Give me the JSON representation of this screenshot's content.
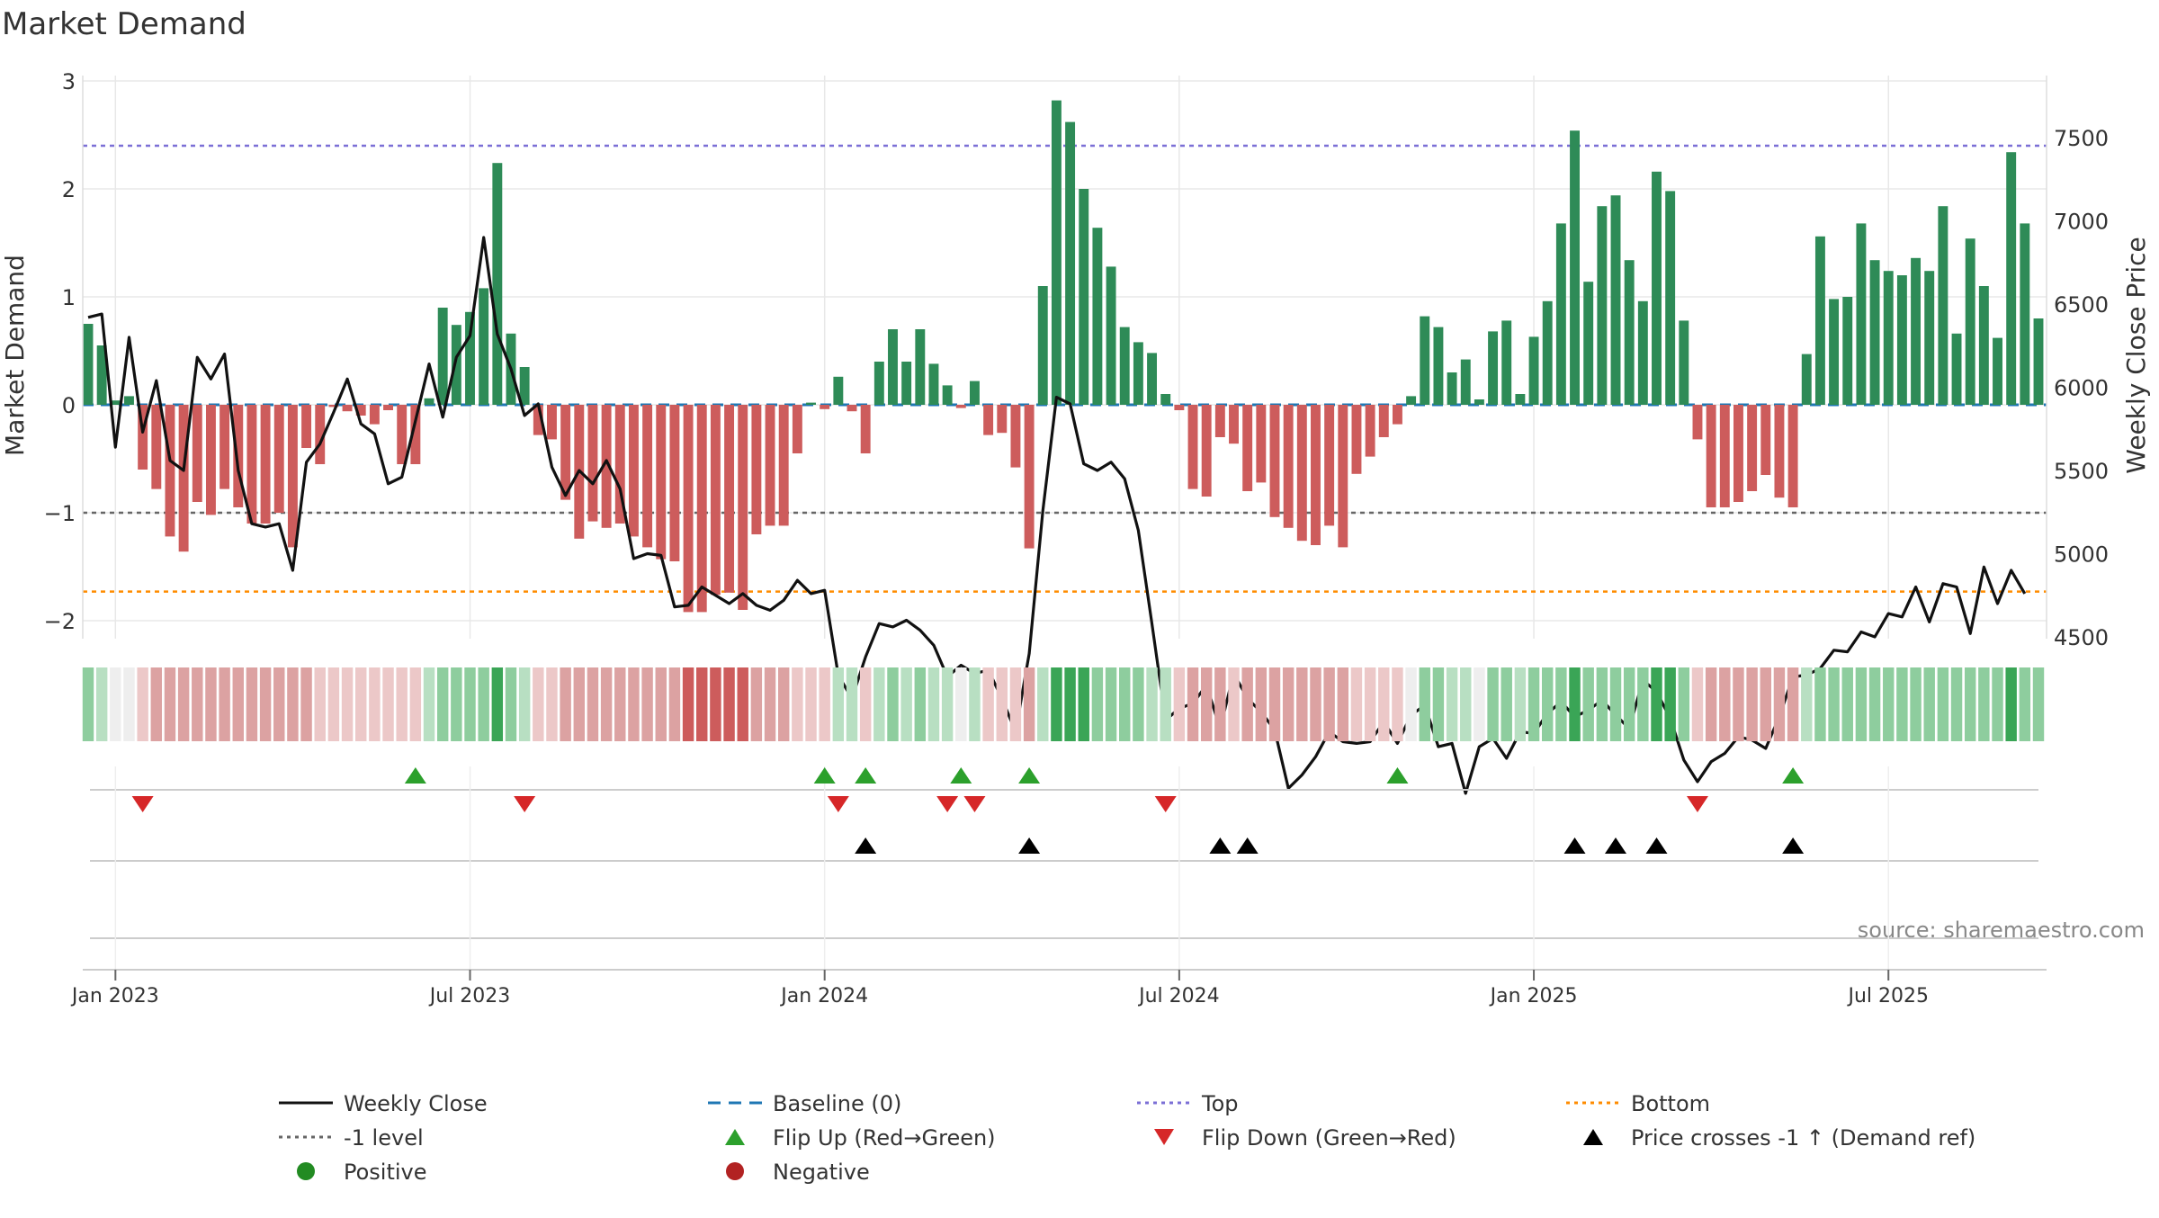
{
  "colors": {
    "positive": "#2e8b57",
    "negative": "#cd5c5c",
    "close": "#111111",
    "baseline": "#1f77b4",
    "top": "#7b6fd6",
    "bottom": "#ff8c00",
    "minus1": "#666666",
    "flip_up": "#2ca02c",
    "flip_down": "#d62728",
    "cross": "#000000",
    "grid": "#e8e8e8",
    "source": "#888888"
  },
  "chart_data": {
    "type": "bar+line",
    "title": "Market Demand",
    "ylabel_left": "Market Demand",
    "ylabel_right": "Weekly Close Price",
    "source": "source: sharemaestro.com",
    "ylim_left": [
      -2.2,
      3.0
    ],
    "ylim_right": [
      4450,
      7800
    ],
    "yticks_left": [
      3,
      2,
      1,
      0,
      -1,
      -2
    ],
    "ytick_labels_left": [
      "3",
      "2",
      "1",
      "0",
      "−1",
      "−2"
    ],
    "yticks_right": [
      7500,
      7000,
      6500,
      6000,
      5500,
      5000,
      4500
    ],
    "ytick_labels_right": [
      "7500",
      "7000",
      "6500",
      "6000",
      "5500",
      "5000",
      "4500"
    ],
    "xtick_weeks": [
      2,
      28,
      54,
      80,
      106,
      132
    ],
    "xtick_labels": [
      "Jan 2023",
      "Jul 2023",
      "Jan 2024",
      "Jul 2024",
      "Jan 2025",
      "Jul 2025"
    ],
    "reference_lines": {
      "top": 2.4,
      "minus1": -1.0,
      "bottom": -1.73,
      "baseline": 0
    },
    "demand": [
      0.75,
      0.55,
      0.04,
      0.08,
      -0.6,
      -0.78,
      -1.22,
      -1.36,
      -0.9,
      -1.02,
      -0.78,
      -0.95,
      -1.1,
      -1.1,
      -1.0,
      -1.32,
      -0.4,
      -0.55,
      -0.02,
      -0.06,
      -0.1,
      -0.18,
      -0.05,
      -0.55,
      -0.55,
      0.06,
      0.9,
      0.74,
      0.86,
      1.08,
      2.24,
      0.66,
      0.35,
      -0.28,
      -0.32,
      -0.88,
      -1.24,
      -1.08,
      -1.14,
      -1.1,
      -1.22,
      -1.32,
      -1.43,
      -1.45,
      -1.92,
      -1.92,
      -1.76,
      -1.74,
      -1.9,
      -1.2,
      -1.12,
      -1.12,
      -0.45,
      0.02,
      -0.04,
      0.26,
      -0.06,
      -0.45,
      0.4,
      0.7,
      0.4,
      0.7,
      0.38,
      0.18,
      -0.03,
      0.22,
      -0.28,
      -0.26,
      -0.58,
      -1.33,
      1.1,
      2.82,
      2.62,
      2.0,
      1.64,
      1.28,
      0.72,
      0.58,
      0.48,
      0.1,
      -0.05,
      -0.78,
      -0.85,
      -0.3,
      -0.36,
      -0.8,
      -0.72,
      -1.04,
      -1.14,
      -1.26,
      -1.3,
      -1.12,
      -1.32,
      -0.64,
      -0.48,
      -0.3,
      -0.18,
      0.08,
      0.82,
      0.72,
      0.3,
      0.42,
      0.05,
      0.68,
      0.78,
      0.1,
      0.63,
      0.96,
      1.68,
      2.54,
      1.14,
      1.84,
      1.94,
      1.34,
      0.96,
      2.16,
      1.98,
      0.78,
      -0.32,
      -0.95,
      -0.95,
      -0.9,
      -0.8,
      -0.65,
      -0.86,
      -0.95,
      0.47,
      1.56,
      0.98,
      1.0,
      1.68,
      1.34,
      1.24,
      1.2,
      1.36,
      1.24,
      1.84,
      0.66,
      1.54,
      1.1,
      0.62,
      2.34,
      1.68,
      0.8
    ],
    "close": [
      6420,
      6440,
      5640,
      6300,
      5730,
      6040,
      5560,
      5500,
      6180,
      6050,
      6200,
      5500,
      5180,
      5160,
      5180,
      4900,
      5550,
      5660,
      5850,
      6050,
      5780,
      5720,
      5420,
      5460,
      5800,
      6140,
      5820,
      6180,
      6310,
      6900,
      6320,
      6110,
      5830,
      5900,
      5520,
      5350,
      5500,
      5420,
      5560,
      5390,
      4970,
      5000,
      4990,
      4680,
      4690,
      4800,
      4750,
      4700,
      4760,
      4690,
      4660,
      4720,
      4840,
      4760,
      4780,
      4270,
      4130,
      4380,
      4580,
      4560,
      4600,
      4540,
      4450,
      4260,
      4330,
      4280,
      4300,
      4130,
      3930,
      4400,
      5260,
      5940,
      5900,
      5540,
      5500,
      5550,
      5450,
      5140,
      4580,
      4000,
      4070,
      4100,
      4210,
      3950,
      4280,
      4130,
      4050,
      3940,
      3590,
      3670,
      3780,
      3930,
      3870,
      3860,
      3870,
      3990,
      3860,
      4030,
      4090,
      3840,
      3860,
      3560,
      3840,
      3890,
      3770,
      3930,
      3920,
      4040,
      4110,
      4020,
      4060,
      4120,
      4030,
      3950,
      4240,
      4170,
      4010,
      3760,
      3630,
      3750,
      3800,
      3900,
      3880,
      3830,
      4020,
      4260,
      4270,
      4310,
      4420,
      4410,
      4530,
      4500,
      4640,
      4620,
      4800,
      4590,
      4820,
      4800,
      4520,
      4920,
      4700,
      4900,
      4760
    ],
    "close_render_note": "close series plotted in right-axis price units",
    "color_strip": [
      2,
      1,
      0,
      0,
      -1,
      -2,
      -2,
      -2,
      -2,
      -2,
      -2,
      -2,
      -2,
      -2,
      -2,
      -2,
      -2,
      -1,
      -1,
      -1,
      -1,
      -1,
      -1,
      -1,
      -1,
      1,
      2,
      2,
      2,
      2,
      3,
      2,
      1,
      -1,
      -1,
      -2,
      -2,
      -2,
      -2,
      -2,
      -2,
      -2,
      -2,
      -2,
      -3,
      -3,
      -3,
      -3,
      -3,
      -2,
      -2,
      -2,
      -1,
      -1,
      -1,
      1,
      1,
      -1,
      1,
      2,
      1,
      2,
      1,
      1,
      0,
      1,
      -1,
      -1,
      -1,
      -2,
      1,
      3,
      3,
      3,
      2,
      2,
      2,
      2,
      1,
      1,
      -1,
      -2,
      -2,
      -2,
      -1,
      -2,
      -2,
      -2,
      -2,
      -2,
      -2,
      -2,
      -2,
      -1,
      -1,
      -1,
      -1,
      0,
      2,
      2,
      1,
      1,
      0,
      2,
      2,
      1,
      2,
      2,
      2,
      3,
      2,
      2,
      2,
      2,
      2,
      3,
      3,
      2,
      -1,
      -2,
      -2,
      -2,
      -2,
      -2,
      -2,
      -2,
      1,
      2,
      2,
      2,
      2,
      2,
      2,
      2,
      2,
      2,
      2,
      2,
      2,
      2,
      2,
      3,
      2,
      2
    ],
    "flip_up_weeks": [
      24,
      54,
      57,
      64,
      69,
      96,
      125
    ],
    "flip_down_weeks": [
      4,
      32,
      55,
      63,
      65,
      79,
      118
    ],
    "cross_up_weeks": [
      57,
      69,
      83,
      85,
      109,
      112,
      115,
      125
    ],
    "legend": [
      {
        "label": "Weekly Close",
        "kind": "line",
        "key": "close"
      },
      {
        "label": "Baseline (0)",
        "kind": "dash",
        "key": "baseline"
      },
      {
        "label": "Top",
        "kind": "dot",
        "key": "top"
      },
      {
        "label": "Bottom",
        "kind": "dot",
        "key": "bottom"
      },
      {
        "label": "-1 level",
        "kind": "dot",
        "key": "minus1"
      },
      {
        "label": "Flip Up (Red→Green)",
        "kind": "tri-up",
        "key": "flip_up"
      },
      {
        "label": "Flip Down (Green→Red)",
        "kind": "tri-down",
        "key": "flip_down"
      },
      {
        "label": "Price crosses -1 ↑ (Demand ref)",
        "kind": "tri-up",
        "key": "cross"
      },
      {
        "label": "Positive",
        "kind": "circle",
        "key": "positive_dot"
      },
      {
        "label": "Negative",
        "kind": "circle",
        "key": "negative_dot"
      }
    ],
    "legend_dot_colors": {
      "positive_dot": "#228b22",
      "negative_dot": "#b22222"
    }
  }
}
